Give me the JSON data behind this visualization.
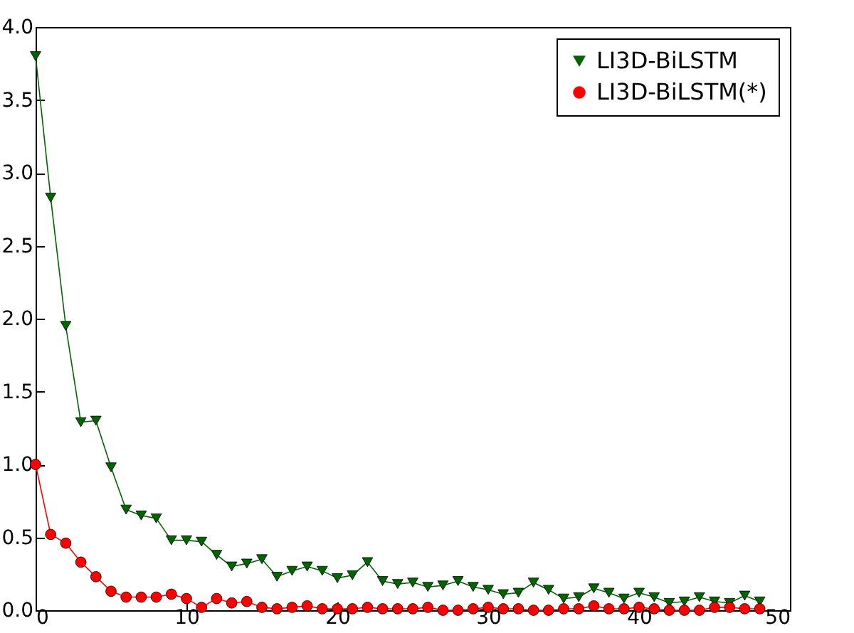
{
  "chart_data": {
    "type": "line",
    "x": [
      0,
      1,
      2,
      3,
      4,
      5,
      6,
      7,
      8,
      9,
      10,
      11,
      12,
      13,
      14,
      15,
      16,
      17,
      18,
      19,
      20,
      21,
      22,
      23,
      24,
      25,
      26,
      27,
      28,
      29,
      30,
      31,
      32,
      33,
      34,
      35,
      36,
      37,
      38,
      39,
      40,
      41,
      42,
      43,
      44,
      45,
      46,
      47,
      48
    ],
    "series": [
      {
        "name": "LI3D-BiLSTM",
        "color": "#006400",
        "marker": "triangle",
        "values": [
          3.8,
          2.83,
          1.95,
          1.29,
          1.3,
          0.98,
          0.69,
          0.65,
          0.63,
          0.48,
          0.48,
          0.47,
          0.38,
          0.3,
          0.32,
          0.35,
          0.23,
          0.27,
          0.3,
          0.27,
          0.22,
          0.24,
          0.33,
          0.2,
          0.18,
          0.19,
          0.16,
          0.17,
          0.2,
          0.16,
          0.14,
          0.11,
          0.12,
          0.19,
          0.14,
          0.08,
          0.09,
          0.15,
          0.12,
          0.08,
          0.12,
          0.09,
          0.05,
          0.06,
          0.09,
          0.06,
          0.05,
          0.1,
          0.06
        ]
      },
      {
        "name": "LI3D-BiLSTM(*)",
        "color": "#ff0000",
        "marker": "circle",
        "values": [
          1.0,
          0.52,
          0.46,
          0.33,
          0.23,
          0.13,
          0.09,
          0.09,
          0.09,
          0.11,
          0.08,
          0.02,
          0.08,
          0.05,
          0.06,
          0.02,
          0.01,
          0.02,
          0.03,
          0.01,
          0.01,
          0.01,
          0.02,
          0.01,
          0.01,
          0.01,
          0.02,
          0.0,
          0.0,
          0.01,
          0.02,
          0.01,
          0.01,
          0.0,
          0.0,
          0.01,
          0.01,
          0.03,
          0.01,
          0.01,
          0.02,
          0.01,
          0.0,
          0.0,
          0.0,
          0.02,
          0.02,
          0.01,
          0.01
        ]
      }
    ],
    "xlim": [
      0,
      50
    ],
    "xticks": [
      0,
      10,
      20,
      30,
      40,
      50
    ],
    "ylim": [
      0,
      4.0
    ],
    "yticks": [
      {
        "value": 0,
        "label": "0.0"
      },
      {
        "value": 0.5,
        "label": "0.5"
      },
      {
        "value": 1,
        "label": "1.0"
      },
      {
        "value": 1.5,
        "label": "1.5"
      },
      {
        "value": 2,
        "label": "2.0"
      },
      {
        "value": 2.5,
        "label": "2.5"
      },
      {
        "value": 3,
        "label": "3.0"
      },
      {
        "value": 3.5,
        "label": "3.5"
      },
      {
        "value": 4,
        "label": "4.0"
      }
    ],
    "grid": false,
    "legend": "top right",
    "line_style": "solid"
  }
}
